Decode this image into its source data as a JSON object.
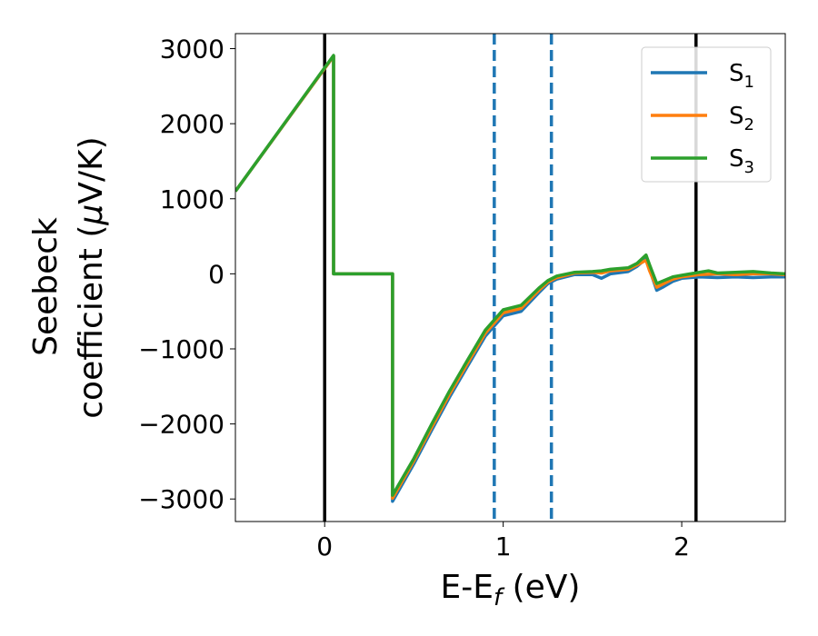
{
  "chart_data": {
    "type": "line",
    "title": "",
    "xlabel": {
      "main": "E-E",
      "sub": "f",
      "unit": " (eV)"
    },
    "ylabel": {
      "line1": "Seebeck",
      "line2_pre": "coefficient  (",
      "line2_mu": "μ",
      "line2_post": "V/K)"
    },
    "xlim": [
      -0.5,
      2.58
    ],
    "ylim": [
      -3300,
      3200
    ],
    "xticks": [
      0,
      1,
      2
    ],
    "xtick_labels": [
      "0",
      "1",
      "2"
    ],
    "yticks": [
      3000,
      2000,
      1000,
      0,
      -1000,
      -2000,
      -3000
    ],
    "ytick_labels": [
      "3000",
      "2000",
      "1000",
      "0",
      "−1000",
      "−2000",
      "−3000"
    ],
    "grid": false,
    "legend_position": "top-right",
    "vlines": [
      {
        "x": 0,
        "style": "solid",
        "color": "#000000"
      },
      {
        "x": 0.95,
        "style": "dashed",
        "color": "#1f77b4"
      },
      {
        "x": 1.27,
        "style": "dashed",
        "color": "#1f77b4"
      },
      {
        "x": 2.08,
        "style": "solid",
        "color": "#000000"
      }
    ],
    "series": [
      {
        "label_main": "S",
        "label_sub": "1",
        "color": "#1f77b4",
        "x": [
          -0.5,
          0.05,
          0.05,
          0.38,
          0.38,
          0.5,
          0.6,
          0.7,
          0.8,
          0.9,
          1.0,
          1.1,
          1.2,
          1.25,
          1.3,
          1.4,
          1.5,
          1.55,
          1.6,
          1.7,
          1.75,
          1.8,
          1.82,
          1.86,
          1.9,
          1.95,
          2.0,
          2.1,
          2.2,
          2.3,
          2.4,
          2.5,
          2.58
        ],
        "y": [
          1100,
          2900,
          0,
          0,
          -3030,
          -2530,
          -2080,
          -1640,
          -1230,
          -830,
          -560,
          -500,
          -250,
          -130,
          -70,
          -10,
          -10,
          -60,
          0,
          30,
          100,
          200,
          60,
          -220,
          -170,
          -100,
          -60,
          -40,
          -50,
          -40,
          -50,
          -40,
          -40
        ]
      },
      {
        "label_main": "S",
        "label_sub": "2",
        "color": "#ff7f0e",
        "x": [
          -0.5,
          0.05,
          0.05,
          0.38,
          0.38,
          0.5,
          0.6,
          0.7,
          0.8,
          0.9,
          1.0,
          1.1,
          1.2,
          1.25,
          1.3,
          1.4,
          1.5,
          1.55,
          1.6,
          1.7,
          1.75,
          1.8,
          1.82,
          1.86,
          1.9,
          1.95,
          2.0,
          2.1,
          2.2,
          2.3,
          2.4,
          2.5,
          2.58
        ],
        "y": [
          1100,
          2900,
          0,
          0,
          -2990,
          -2490,
          -2040,
          -1600,
          -1190,
          -790,
          -520,
          -460,
          -220,
          -110,
          -50,
          10,
          20,
          10,
          40,
          60,
          120,
          180,
          40,
          -180,
          -130,
          -70,
          -40,
          -10,
          0,
          -10,
          0,
          0,
          -10
        ]
      },
      {
        "label_main": "S",
        "label_sub": "3",
        "color": "#2ca02c",
        "x": [
          -0.5,
          0.05,
          0.05,
          0.38,
          0.38,
          0.5,
          0.6,
          0.7,
          0.8,
          0.9,
          1.0,
          1.1,
          1.2,
          1.25,
          1.3,
          1.4,
          1.5,
          1.55,
          1.6,
          1.7,
          1.75,
          1.8,
          1.82,
          1.86,
          1.9,
          1.95,
          2.0,
          2.1,
          2.15,
          2.2,
          2.3,
          2.4,
          2.5,
          2.58
        ],
        "y": [
          1100,
          2910,
          0,
          0,
          -2950,
          -2460,
          -2000,
          -1560,
          -1150,
          -750,
          -480,
          -420,
          -190,
          -90,
          -30,
          20,
          30,
          40,
          60,
          80,
          140,
          250,
          120,
          -130,
          -90,
          -40,
          -20,
          20,
          40,
          10,
          20,
          30,
          10,
          0
        ]
      }
    ]
  }
}
